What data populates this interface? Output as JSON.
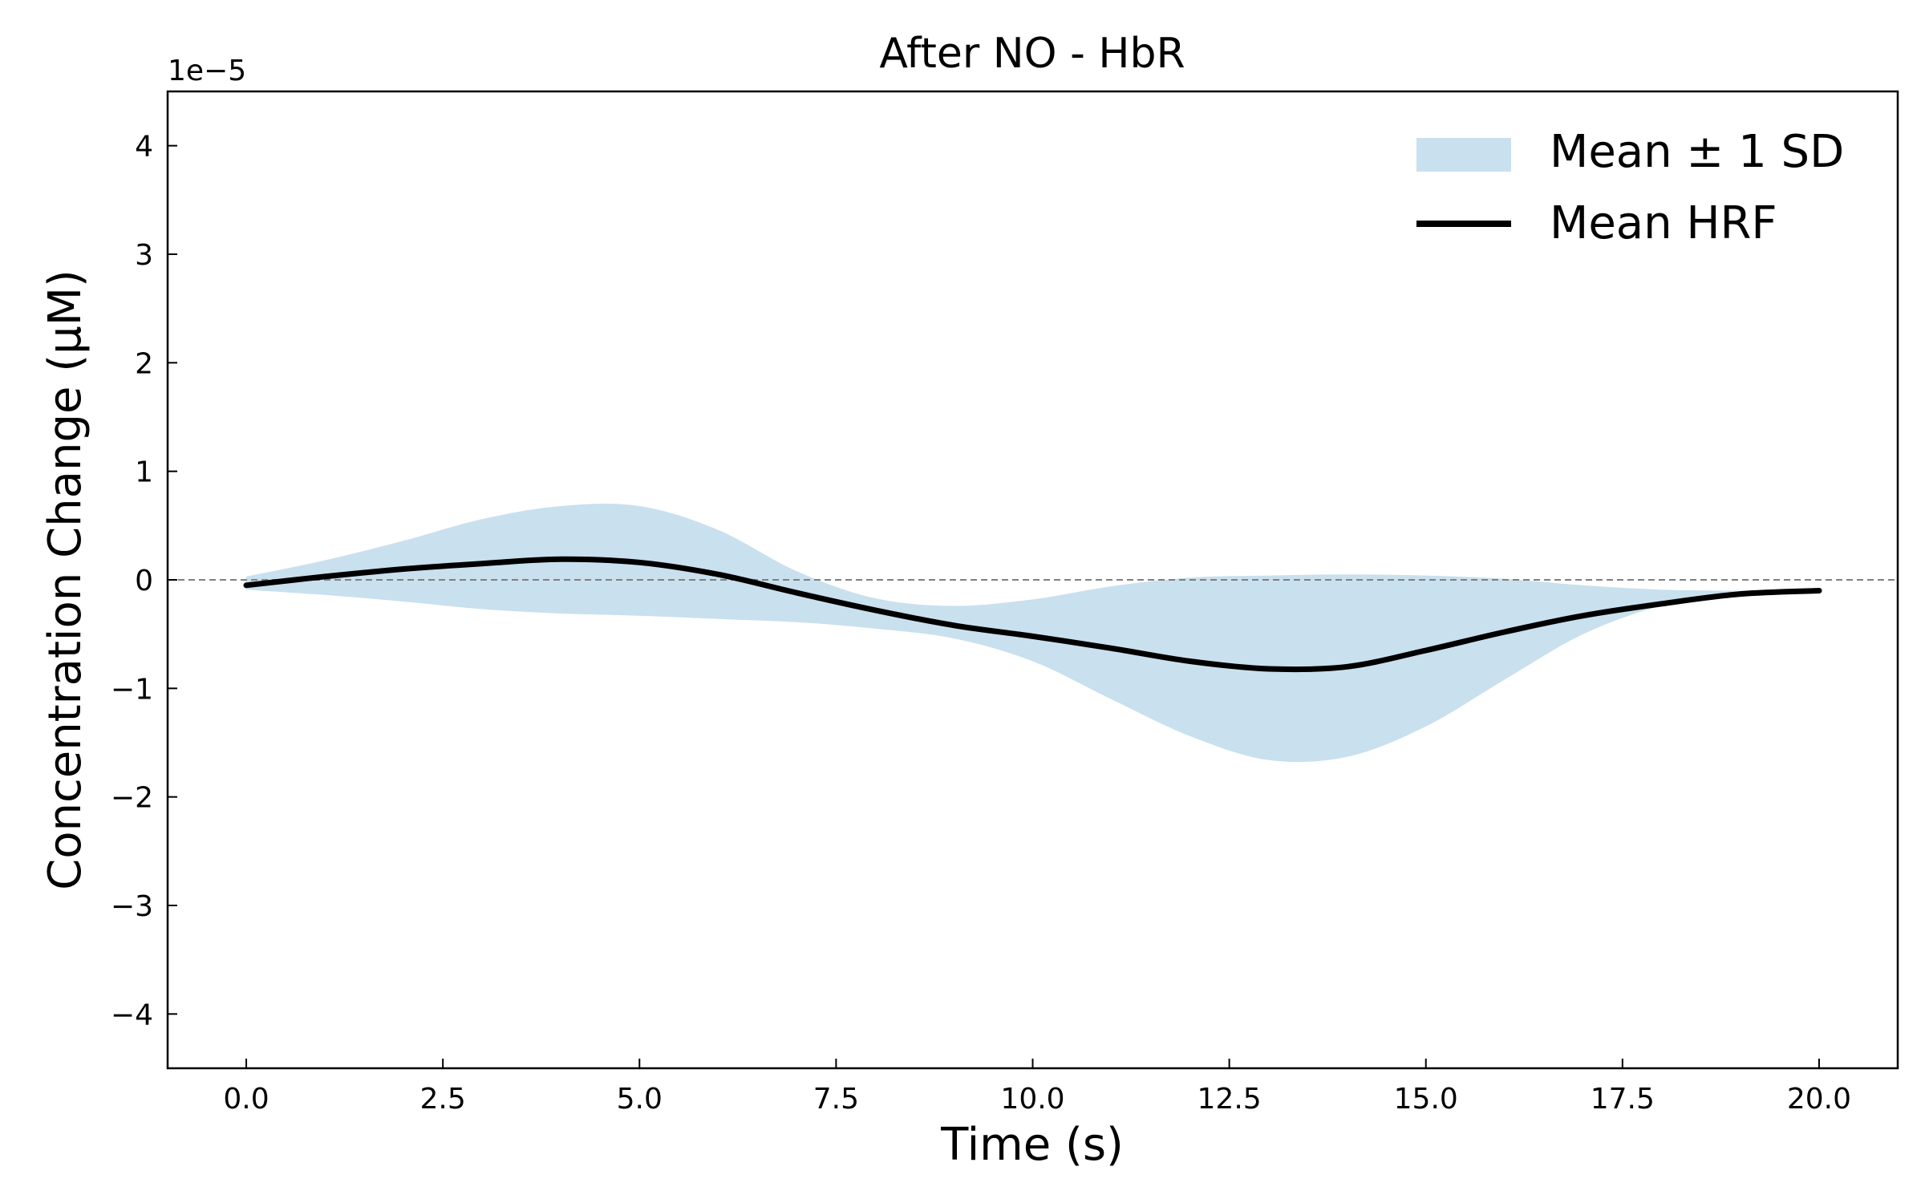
{
  "chart_data": {
    "type": "area",
    "title": "After NO - HbR",
    "xlabel": "Time (s)",
    "ylabel": "Concentration Change (μM)",
    "y_offset_label": "1e−5",
    "xlim": [
      -1.0,
      21.0
    ],
    "ylim": [
      -4.5,
      4.5
    ],
    "xticks": [
      0.0,
      2.5,
      5.0,
      7.5,
      10.0,
      12.5,
      15.0,
      17.5,
      20.0
    ],
    "xtick_labels": [
      "0.0",
      "2.5",
      "5.0",
      "7.5",
      "10.0",
      "12.5",
      "15.0",
      "17.5",
      "20.0"
    ],
    "yticks": [
      -4,
      -3,
      -2,
      -1,
      0,
      1,
      2,
      3,
      4
    ],
    "ytick_labels": [
      "−4",
      "−3",
      "−2",
      "−1",
      "0",
      "1",
      "2",
      "3",
      "4"
    ],
    "reference_line_y": 0,
    "legend_position": "top-right",
    "colors": {
      "band": "#c9e0ee",
      "mean": "#000000",
      "zero_line": "#808080"
    },
    "x": [
      0.0,
      1.0,
      2.0,
      3.0,
      4.0,
      5.0,
      6.0,
      7.0,
      8.0,
      9.0,
      10.0,
      11.0,
      12.0,
      13.0,
      14.0,
      15.0,
      16.0,
      17.0,
      18.0,
      19.0,
      20.0
    ],
    "series": [
      {
        "name": "Mean HRF",
        "values": [
          -0.05,
          0.03,
          0.1,
          0.15,
          0.19,
          0.16,
          0.05,
          -0.12,
          -0.28,
          -0.42,
          -0.52,
          -0.63,
          -0.75,
          -0.82,
          -0.8,
          -0.65,
          -0.48,
          -0.33,
          -0.22,
          -0.13,
          -0.1
        ]
      },
      {
        "name": "Mean ± 1 SD",
        "upper": [
          0.03,
          0.18,
          0.36,
          0.56,
          0.68,
          0.68,
          0.46,
          0.08,
          -0.17,
          -0.24,
          -0.18,
          -0.06,
          0.02,
          0.04,
          0.05,
          0.04,
          0.01,
          -0.05,
          -0.09,
          -0.1,
          -0.1
        ],
        "lower": [
          -0.09,
          -0.14,
          -0.2,
          -0.27,
          -0.31,
          -0.33,
          -0.36,
          -0.39,
          -0.45,
          -0.54,
          -0.75,
          -1.1,
          -1.44,
          -1.66,
          -1.63,
          -1.35,
          -0.92,
          -0.5,
          -0.24,
          -0.14,
          -0.1
        ]
      }
    ]
  }
}
